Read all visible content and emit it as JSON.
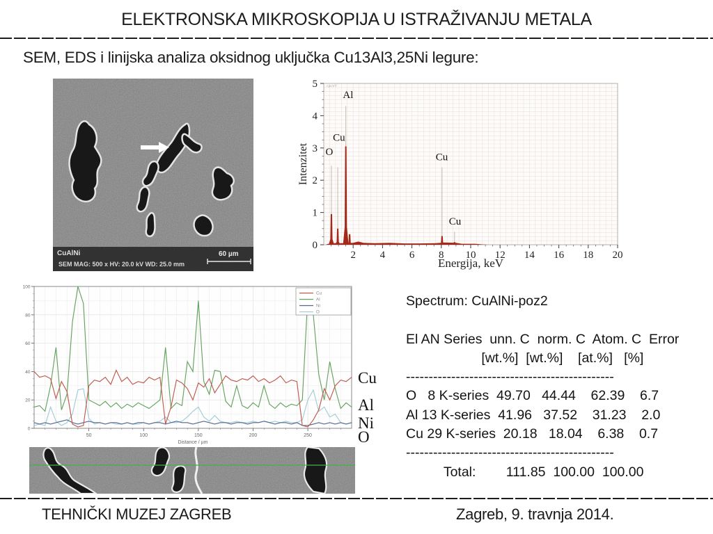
{
  "slide": {
    "title": "ELEKTRONSKA MIKROSKOPIJA U ISTRAŽIVANJU METALA",
    "subtitle": "SEM, EDS i linijska analiza oksidnog uključka Cu13Al3,25Ni legure:",
    "footer_left": "TEHNIČKI MUZEJ ZAGREB",
    "footer_right": "Zagreb,  9. travnja 2014."
  },
  "sem_image": {
    "label": "CuAlNi",
    "info_line": "SEM  MAG: 500 x  HV: 20.0 kV  WD: 25.0 mm",
    "scale_label": "60 µm"
  },
  "sem_strip": {
    "scan_line_color": "#44b244"
  },
  "eds_table": {
    "title": "Spectrum: CuAlNi-poz2",
    "header1": "El AN Series  unn. C  norm. C  Atom. C  Error",
    "header2": "                    [wt.%]  [wt.%]    [at.%]   [%]",
    "divider": "----------------------------------------------",
    "columns": [
      "El",
      "AN",
      "Series",
      "unn. C [wt.%]",
      "norm. C [wt.%]",
      "Atom. C [at.%]",
      "Error [%]"
    ],
    "rows": [
      [
        "O",
        "8",
        "K-series",
        "49.70",
        "44.44",
        "62.39",
        "6.7"
      ],
      [
        "Al",
        "13",
        "K-series",
        "41.96",
        "37.52",
        "31.23",
        "2.0"
      ],
      [
        "Cu",
        "29",
        "K-series",
        "20.18",
        "18.04",
        "6.38",
        "0.7"
      ]
    ],
    "total_label": "Total:",
    "total_values": [
      "111.85",
      "100.00",
      "100.00"
    ]
  },
  "chart_data": [
    {
      "type": "area",
      "name": "EDS spectrum",
      "xlabel": "Energija, keV",
      "ylabel": "Intenzitet",
      "note": "cps/eV",
      "xlim": [
        0,
        20
      ],
      "ylim": [
        0,
        5
      ],
      "xticks": [
        2,
        4,
        6,
        8,
        10,
        12,
        14,
        16,
        18,
        20
      ],
      "yticks": [
        0,
        1,
        2,
        3,
        4,
        5
      ],
      "grid": true,
      "peak_color": "#a5291b",
      "marker_color": "#c9c0b8",
      "peaks": [
        {
          "element": "O",
          "x": 0.52,
          "height": 0.95,
          "marker": 2.45,
          "label_x": 0.12,
          "label_y": 2.78
        },
        {
          "element": "Cu",
          "x": 0.95,
          "height": 0.5,
          "marker": 2.4,
          "label_x": 0.62,
          "label_y": 3.22
        },
        {
          "element": "Al",
          "x": 1.5,
          "height": 3.05,
          "marker": 4.3,
          "label_x": 1.3,
          "label_y": 4.55
        },
        {
          "element": "",
          "x": 1.76,
          "height": 0.33,
          "marker": 0
        },
        {
          "element": "Cu",
          "x": 8.05,
          "height": 0.27,
          "marker": 2.4,
          "label_x": 7.62,
          "label_y": 2.62
        },
        {
          "element": "Cu",
          "x": 8.9,
          "height": 0.08,
          "marker": 0.4,
          "label_x": 8.52,
          "label_y": 0.62
        }
      ],
      "baseline": [
        [
          0.2,
          0.02
        ],
        [
          0.6,
          0.05
        ],
        [
          1.2,
          0.05
        ],
        [
          2.0,
          0.06
        ],
        [
          2.35,
          0.1
        ],
        [
          2.7,
          0.06
        ],
        [
          3.5,
          0.05
        ],
        [
          4.5,
          0.06
        ],
        [
          5.5,
          0.04
        ],
        [
          6.5,
          0.04
        ],
        [
          7.6,
          0.05
        ],
        [
          8.2,
          0.07
        ],
        [
          9.0,
          0.06
        ],
        [
          9.4,
          0.03
        ],
        [
          10.3,
          0.03
        ],
        [
          10.8,
          0.01
        ],
        [
          11.2,
          0.0
        ]
      ]
    },
    {
      "type": "line",
      "name": "EDS line scan",
      "xlabel": "Distance / µm",
      "xlim": [
        0,
        290
      ],
      "ylim": [
        0,
        100
      ],
      "xticks": [
        50,
        100,
        150,
        200,
        250
      ],
      "yticks": [
        0,
        20,
        40,
        60,
        80,
        100
      ],
      "grid": true,
      "legend_position": "top-right",
      "legend": [
        "Cu",
        "Al",
        "Ni",
        "O"
      ],
      "right_labels": [
        "Cu",
        "Al",
        "Ni",
        "O"
      ],
      "colors": {
        "Cu": "#c0584c",
        "Al": "#64a35e",
        "Ni": "#53688a",
        "O": "#a3ccd6"
      },
      "x_step": 5,
      "series": [
        {
          "name": "Cu",
          "values": [
            40,
            36,
            37,
            35,
            21,
            33,
            26,
            3,
            1,
            2,
            30,
            34,
            33,
            36,
            31,
            41,
            33,
            36,
            31,
            33,
            32,
            36,
            34,
            36,
            3,
            15,
            34,
            32,
            28,
            20,
            32,
            29,
            35,
            25,
            31,
            37,
            34,
            33,
            35,
            34,
            37,
            33,
            35,
            32,
            34,
            37,
            32,
            34,
            33,
            2,
            1,
            6,
            13,
            28,
            20,
            30,
            34,
            33,
            36
          ]
        },
        {
          "name": "Al",
          "values": [
            15,
            16,
            12,
            30,
            57,
            13,
            24,
            75,
            100,
            88,
            20,
            18,
            16,
            19,
            15,
            18,
            14,
            17,
            15,
            18,
            16,
            14,
            17,
            20,
            57,
            14,
            18,
            16,
            47,
            40,
            90,
            33,
            24,
            41,
            40,
            19,
            15,
            30,
            16,
            14,
            18,
            15,
            30,
            17,
            14,
            18,
            15,
            17,
            16,
            20,
            93,
            80,
            38,
            20,
            47,
            28,
            14,
            18,
            15
          ]
        },
        {
          "name": "Ni",
          "values": [
            4,
            3,
            4,
            3,
            4,
            5,
            6,
            4,
            3,
            4,
            5,
            4,
            4,
            3,
            4,
            4,
            3,
            4,
            3,
            4,
            4,
            3,
            4,
            4,
            3,
            4,
            5,
            4,
            4,
            3,
            4,
            5,
            4,
            3,
            4,
            4,
            3,
            4,
            4,
            3,
            4,
            4,
            5,
            4,
            3,
            4,
            4,
            3,
            4,
            2,
            2,
            3,
            4,
            3,
            4,
            3,
            4,
            3,
            4
          ]
        },
        {
          "name": "O",
          "values": [
            2,
            3,
            2,
            15,
            5,
            2,
            4,
            10,
            27,
            28,
            7,
            3,
            4,
            3,
            4,
            3,
            3,
            4,
            3,
            3,
            4,
            3,
            4,
            5,
            8,
            4,
            4,
            5,
            8,
            12,
            15,
            8,
            5,
            9,
            5,
            4,
            4,
            5,
            4,
            4,
            5,
            4,
            5,
            4,
            5,
            4,
            5,
            4,
            4,
            6,
            20,
            27,
            12,
            15,
            8,
            10,
            4,
            3,
            4
          ]
        }
      ]
    }
  ]
}
